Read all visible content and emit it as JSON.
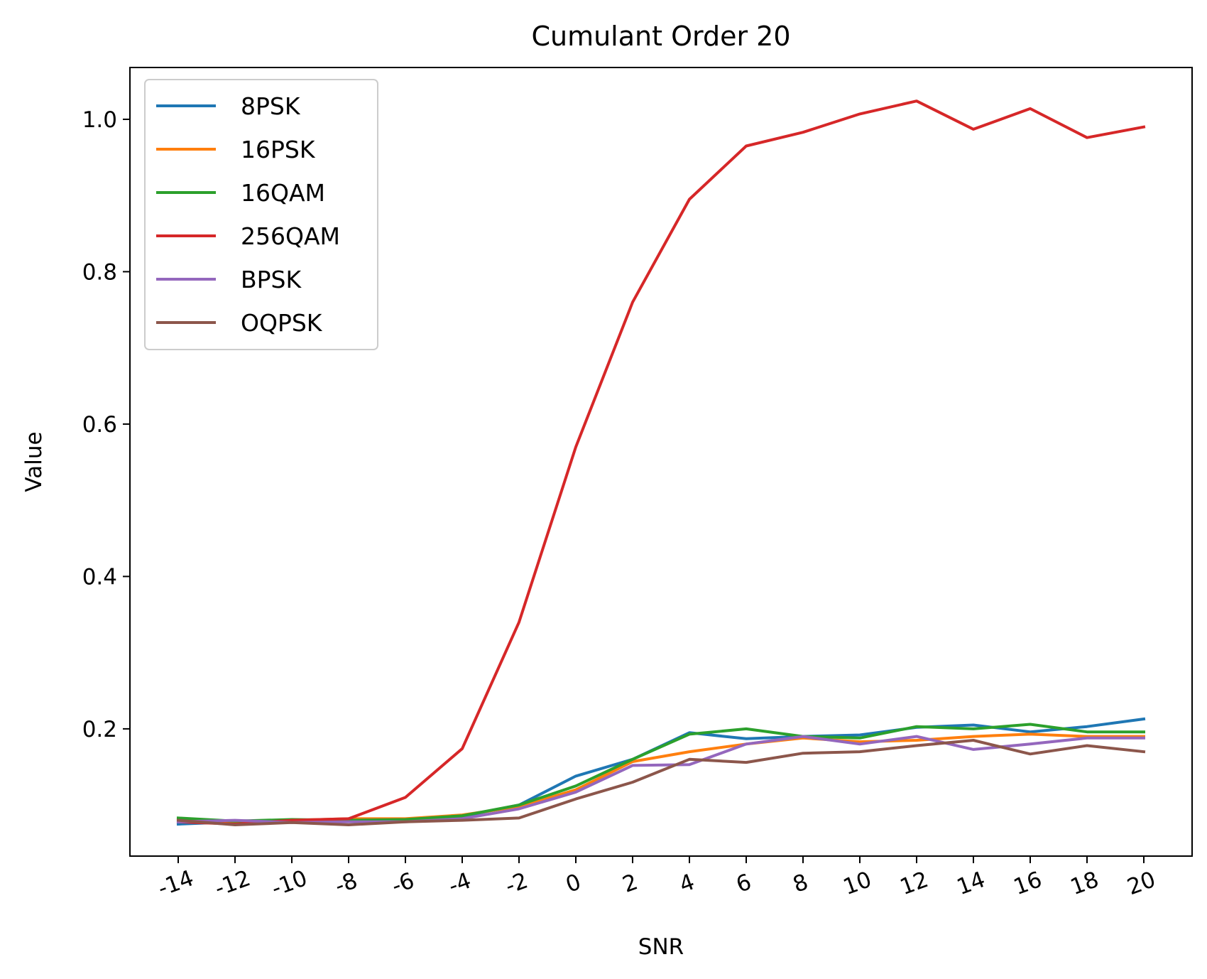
{
  "chart_data": {
    "type": "line",
    "title": "Cumulant Order 20",
    "xlabel": "SNR",
    "ylabel": "Value",
    "categories": [
      "-14",
      "-12",
      "-10",
      "-8",
      "-6",
      "-4",
      "-2",
      "0",
      "2",
      "4",
      "6",
      "8",
      "10",
      "12",
      "14",
      "16",
      "18",
      "20"
    ],
    "yticks": [
      "0.2",
      "0.4",
      "0.6",
      "0.8",
      "1.0"
    ],
    "ylim": [
      0.033,
      1.068
    ],
    "grid": false,
    "legend_position": "top-left",
    "series": [
      {
        "name": "8PSK",
        "color": "#1f77b4",
        "values": [
          0.075,
          0.078,
          0.08,
          0.08,
          0.08,
          0.085,
          0.1,
          0.138,
          0.16,
          0.195,
          0.187,
          0.19,
          0.192,
          0.202,
          0.205,
          0.196,
          0.203,
          0.213
        ]
      },
      {
        "name": "16PSK",
        "color": "#ff7f0e",
        "values": [
          0.082,
          0.078,
          0.08,
          0.082,
          0.082,
          0.087,
          0.098,
          0.12,
          0.157,
          0.17,
          0.18,
          0.188,
          0.183,
          0.185,
          0.19,
          0.193,
          0.19,
          0.19
        ]
      },
      {
        "name": "16QAM",
        "color": "#2ca02c",
        "values": [
          0.083,
          0.079,
          0.081,
          0.08,
          0.081,
          0.086,
          0.1,
          0.125,
          0.16,
          0.193,
          0.2,
          0.19,
          0.188,
          0.203,
          0.2,
          0.206,
          0.196,
          0.196
        ]
      },
      {
        "name": "256QAM",
        "color": "#d62728",
        "values": [
          0.078,
          0.075,
          0.08,
          0.082,
          0.11,
          0.174,
          0.34,
          0.57,
          0.76,
          0.895,
          0.965,
          0.983,
          1.007,
          1.024,
          0.987,
          1.014,
          0.976,
          0.99
        ]
      },
      {
        "name": "BPSK",
        "color": "#9467bd",
        "values": [
          0.078,
          0.08,
          0.077,
          0.078,
          0.078,
          0.082,
          0.095,
          0.117,
          0.152,
          0.153,
          0.18,
          0.19,
          0.18,
          0.19,
          0.173,
          0.18,
          0.188,
          0.188
        ]
      },
      {
        "name": "OQPSK",
        "color": "#8c564b",
        "values": [
          0.08,
          0.074,
          0.077,
          0.074,
          0.078,
          0.08,
          0.083,
          0.108,
          0.13,
          0.16,
          0.156,
          0.168,
          0.17,
          0.178,
          0.185,
          0.167,
          0.178,
          0.17
        ]
      }
    ]
  }
}
